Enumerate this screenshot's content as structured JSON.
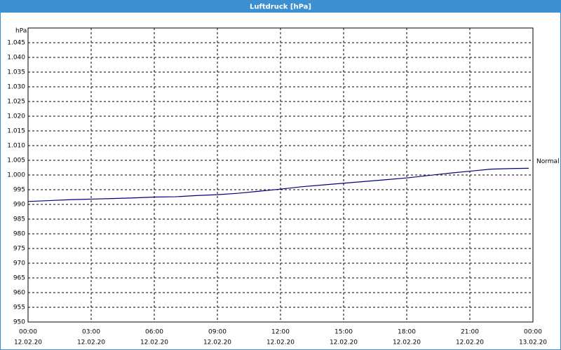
{
  "chart_data": {
    "type": "line",
    "title": "Luftdruck [hPa]",
    "y_unit": "hPa",
    "x": [
      0,
      1,
      2,
      3,
      4,
      5,
      6,
      7,
      8,
      9,
      10,
      11,
      12,
      13,
      14,
      15,
      16,
      17,
      18,
      19,
      20,
      21,
      22,
      23,
      23.8
    ],
    "series": [
      {
        "name": "Normal",
        "color": "#000080",
        "values": [
          991,
          991.3,
          991.6,
          991.8,
          992,
          992.2,
          992.5,
          992.6,
          993,
          993.3,
          993.8,
          994.5,
          995.2,
          996,
          996.6,
          997.2,
          997.8,
          998.4,
          999,
          999.8,
          1000.6,
          1001.3,
          1002,
          1002.2,
          1002.3
        ]
      }
    ],
    "xlim": [
      0,
      24
    ],
    "xticks": [
      {
        "value": 0,
        "label": "00:00",
        "date": "12.02.20"
      },
      {
        "value": 3,
        "label": "03:00",
        "date": "12.02.20"
      },
      {
        "value": 6,
        "label": "06:00",
        "date": "12.02.20"
      },
      {
        "value": 9,
        "label": "09:00",
        "date": "12.02.20"
      },
      {
        "value": 12,
        "label": "12:00",
        "date": "12.02.20"
      },
      {
        "value": 15,
        "label": "15:00",
        "date": "12.02.20"
      },
      {
        "value": 18,
        "label": "18:00",
        "date": "12.02.20"
      },
      {
        "value": 21,
        "label": "21:00",
        "date": "12.02.20"
      },
      {
        "value": 24,
        "label": "00:00",
        "date": "13.02.20"
      }
    ],
    "ylim": [
      950,
      1050
    ],
    "yticks": [
      950,
      955,
      960,
      965,
      970,
      975,
      980,
      985,
      990,
      995,
      {
        "value": 1000,
        "label": "1.000"
      },
      {
        "value": 1005,
        "label": "1.005"
      },
      {
        "value": 1010,
        "label": "1.010"
      },
      {
        "value": 1015,
        "label": "1.015"
      },
      {
        "value": 1020,
        "label": "1.020"
      },
      {
        "value": 1025,
        "label": "1.025"
      },
      {
        "value": 1030,
        "label": "1.030"
      },
      {
        "value": 1035,
        "label": "1.035"
      },
      {
        "value": 1040,
        "label": "1.040"
      },
      {
        "value": 1045,
        "label": "1.045"
      }
    ],
    "grid": true
  }
}
